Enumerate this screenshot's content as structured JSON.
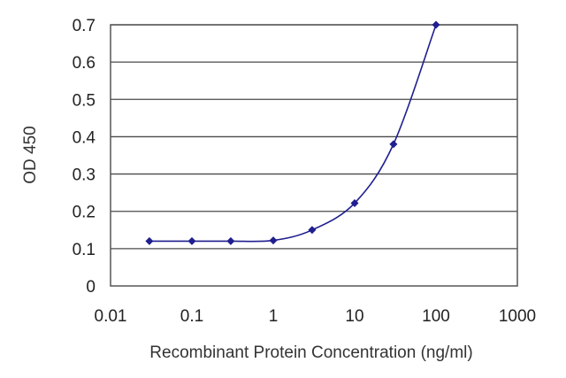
{
  "chart_data": {
    "type": "line",
    "xlabel": "Recombinant Protein Concentration (ng/ml)",
    "ylabel": "OD 450",
    "xscale": "log",
    "xlim": [
      0.01,
      1000
    ],
    "ylim": [
      0,
      0.7
    ],
    "x_ticks": [
      "0.01",
      "0.1",
      "1",
      "10",
      "100",
      "1000"
    ],
    "y_ticks": [
      "0",
      "0.1",
      "0.2",
      "0.3",
      "0.4",
      "0.5",
      "0.6",
      "0.7"
    ],
    "grid": "horizontal",
    "legend": "none",
    "series": [
      {
        "x": [
          0.03,
          0.1,
          0.3,
          1,
          3,
          10,
          30,
          100
        ],
        "y": [
          0.12,
          0.12,
          0.12,
          0.122,
          0.15,
          0.222,
          0.38,
          0.7
        ],
        "color": "#1f1f8f"
      }
    ]
  }
}
